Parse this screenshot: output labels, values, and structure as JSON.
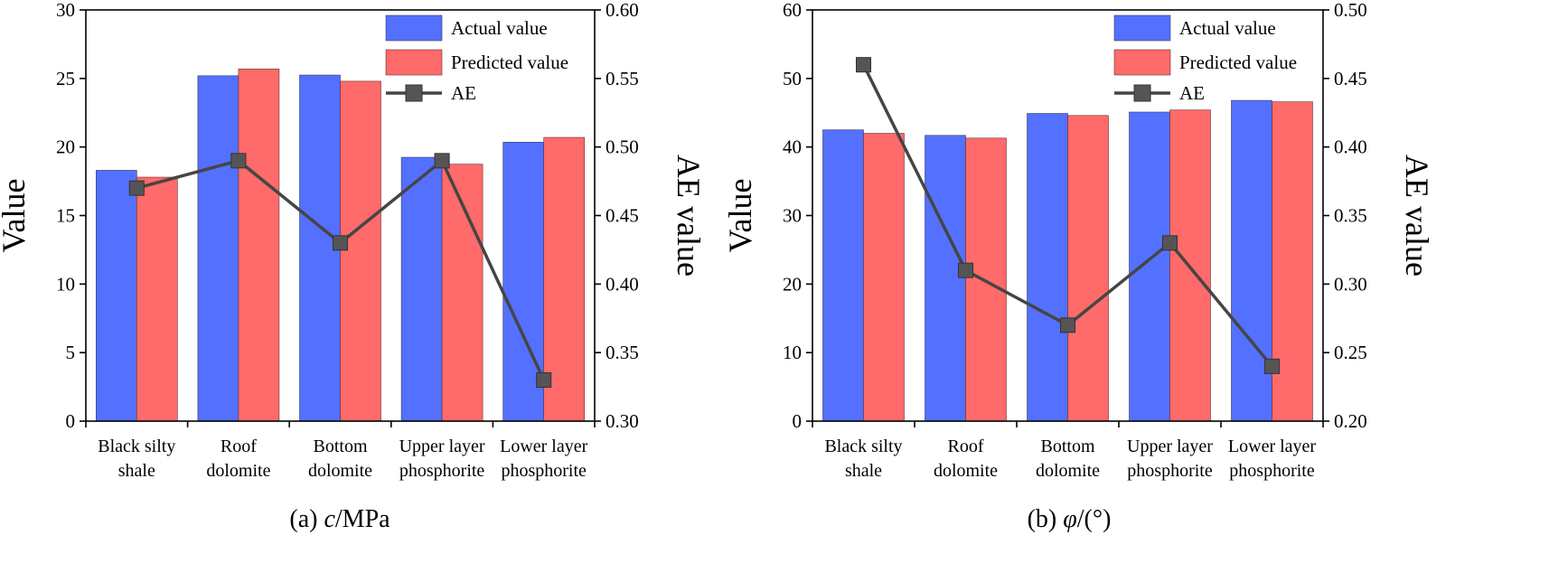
{
  "colors": {
    "actual": "#5470ff",
    "predicted": "#ff6a6a",
    "ae_line": "#454545",
    "ae_marker": "#555555",
    "axis": "#000000"
  },
  "chart_data": [
    {
      "type": "bar",
      "caption_prefix": "(a) ",
      "caption_symbol": "c",
      "caption_suffix": "/MPa",
      "categories": [
        [
          "Black silty",
          "shale"
        ],
        [
          "Roof",
          "dolomite"
        ],
        [
          "Bottom",
          "dolomite"
        ],
        [
          "Upper layer",
          "phosphorite"
        ],
        [
          "Lower layer",
          "phosphorite"
        ]
      ],
      "series": [
        {
          "name": "Actual value",
          "kind": "bar",
          "axis": "left",
          "values": [
            18.3,
            25.2,
            25.25,
            19.25,
            20.35
          ]
        },
        {
          "name": "Predicted value",
          "kind": "bar",
          "axis": "left",
          "values": [
            17.8,
            25.7,
            24.8,
            18.75,
            20.7
          ]
        },
        {
          "name": "AE",
          "kind": "line",
          "axis": "right",
          "values": [
            0.47,
            0.49,
            0.43,
            0.49,
            0.33
          ]
        }
      ],
      "ylabel": "Value",
      "ylabel_right": "AE value",
      "ylim": [
        0,
        30
      ],
      "yticks": [
        "0",
        "5",
        "10",
        "15",
        "20",
        "25",
        "30"
      ],
      "y2lim": [
        0.3,
        0.6
      ],
      "y2ticks": [
        "0.30",
        "0.35",
        "0.40",
        "0.45",
        "0.50",
        "0.55",
        "0.60"
      ],
      "legend_position": "top-right",
      "grid": false
    },
    {
      "type": "bar",
      "caption_prefix": "(b) ",
      "caption_symbol": "φ",
      "caption_suffix": "/(°)",
      "categories": [
        [
          "Black silty",
          "shale"
        ],
        [
          "Roof",
          "dolomite"
        ],
        [
          "Bottom",
          "dolomite"
        ],
        [
          "Upper layer",
          "phosphorite"
        ],
        [
          "Lower layer",
          "phosphorite"
        ]
      ],
      "series": [
        {
          "name": "Actual value",
          "kind": "bar",
          "axis": "left",
          "values": [
            42.5,
            41.7,
            44.9,
            45.1,
            46.8
          ]
        },
        {
          "name": "Predicted value",
          "kind": "bar",
          "axis": "left",
          "values": [
            42.0,
            41.3,
            44.6,
            45.4,
            46.6
          ]
        },
        {
          "name": "AE",
          "kind": "line",
          "axis": "right",
          "values": [
            0.46,
            0.31,
            0.27,
            0.33,
            0.24
          ]
        }
      ],
      "ylabel": "Value",
      "ylabel_right": "AE value",
      "ylim": [
        0,
        60
      ],
      "yticks": [
        "0",
        "10",
        "20",
        "30",
        "40",
        "50",
        "60"
      ],
      "y2lim": [
        0.2,
        0.5
      ],
      "y2ticks": [
        "0.20",
        "0.25",
        "0.30",
        "0.35",
        "0.40",
        "0.45",
        "0.50"
      ],
      "legend_position": "top-right",
      "grid": false
    }
  ]
}
